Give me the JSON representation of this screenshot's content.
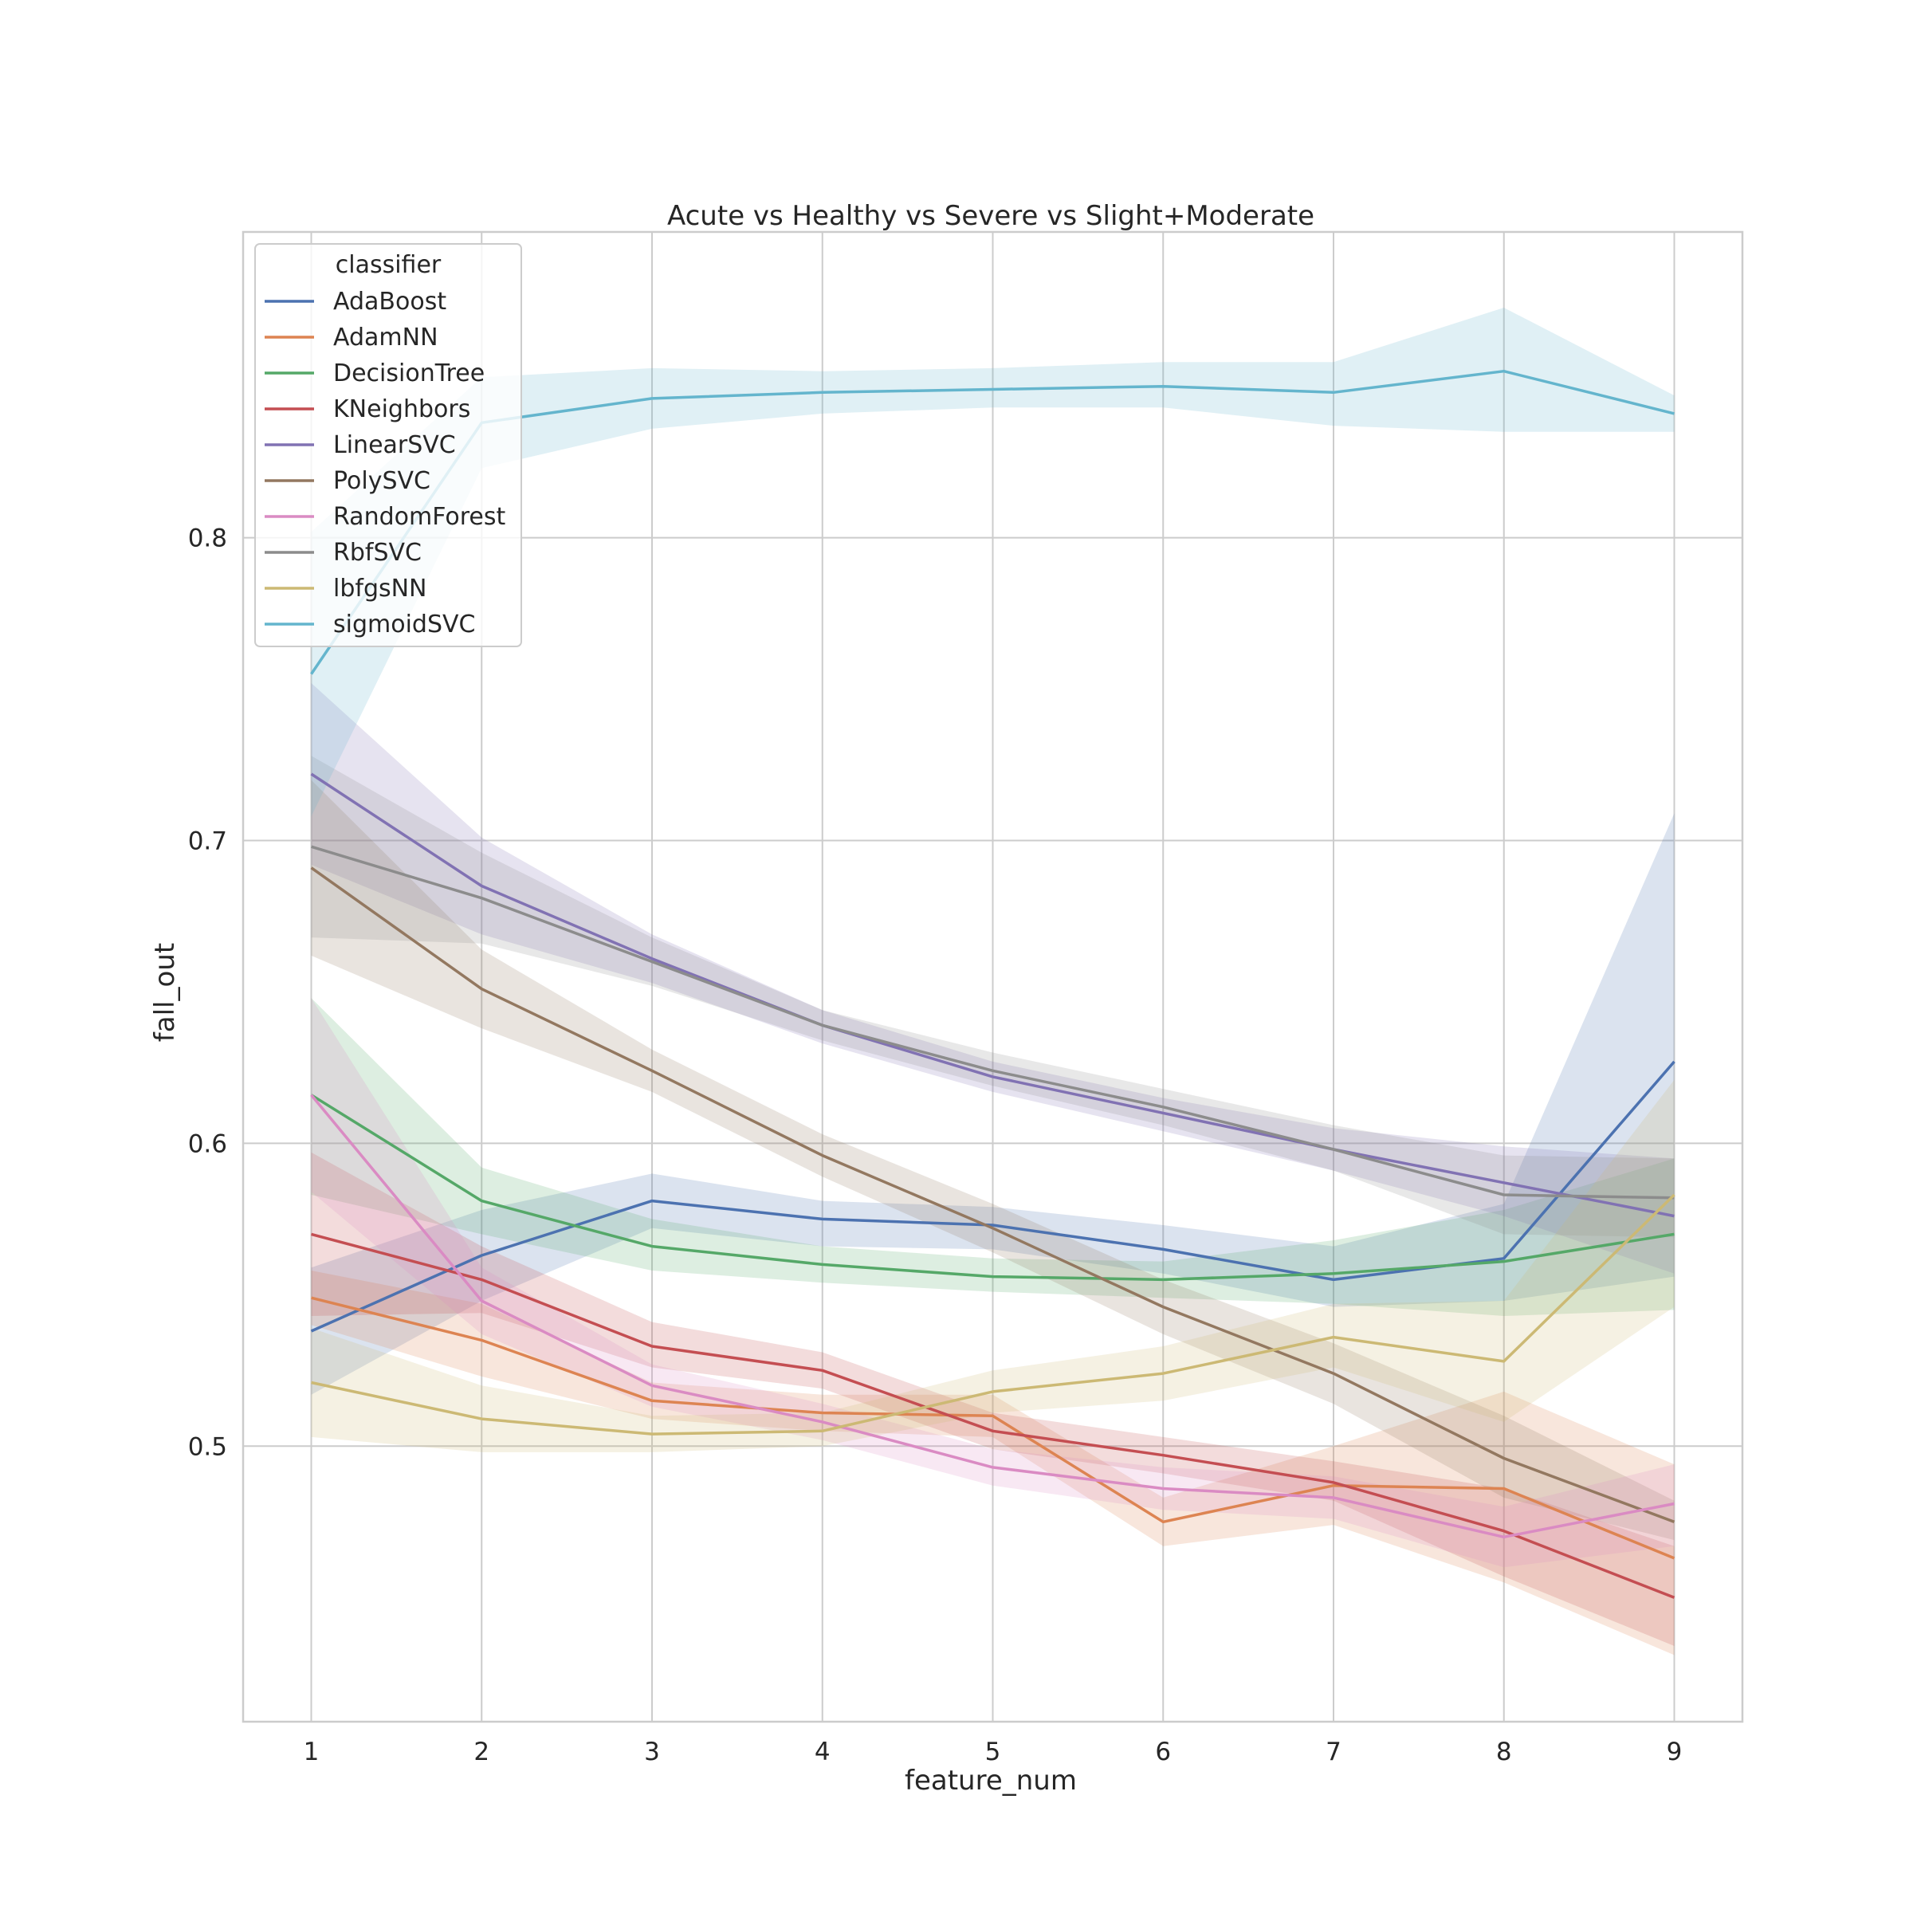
{
  "chart_data": {
    "type": "line",
    "title": "Acute vs Healthy vs Severe vs Slight+Moderate",
    "xlabel": "feature_num",
    "ylabel": "fall_out",
    "x": [
      1,
      2,
      3,
      4,
      5,
      6,
      7,
      8,
      9
    ],
    "xlim": [
      0.6,
      9.4
    ],
    "ylim": [
      0.409,
      0.901
    ],
    "xticks": [
      "1",
      "2",
      "3",
      "4",
      "5",
      "6",
      "7",
      "8",
      "9"
    ],
    "yticks": [
      0.5,
      0.6,
      0.7,
      0.8
    ],
    "ytick_labels": [
      "0.5",
      "0.6",
      "0.7",
      "0.8"
    ],
    "grid": true,
    "legend": {
      "title": "classifier",
      "placement": "top-left"
    },
    "series": [
      {
        "name": "AdaBoost",
        "color": "#4c72b0",
        "values": [
          0.538,
          0.563,
          0.581,
          0.575,
          0.573,
          0.565,
          0.555,
          0.562,
          0.627
        ],
        "lower": [
          0.517,
          0.548,
          0.572,
          0.566,
          0.565,
          0.557,
          0.546,
          0.548,
          0.556
        ],
        "upper": [
          0.559,
          0.578,
          0.59,
          0.581,
          0.579,
          0.573,
          0.566,
          0.58,
          0.709
        ]
      },
      {
        "name": "AdamNN",
        "color": "#dd8452",
        "values": [
          0.549,
          0.535,
          0.515,
          0.511,
          0.51,
          0.475,
          0.487,
          0.486,
          0.463
        ],
        "lower": [
          0.54,
          0.523,
          0.509,
          0.505,
          0.503,
          0.467,
          0.474,
          0.455,
          0.431
        ],
        "upper": [
          0.558,
          0.547,
          0.521,
          0.517,
          0.517,
          0.483,
          0.5,
          0.518,
          0.494
        ]
      },
      {
        "name": "DecisionTree",
        "color": "#55a868",
        "values": [
          0.616,
          0.581,
          0.566,
          0.56,
          0.556,
          0.555,
          0.557,
          0.561,
          0.57
        ],
        "lower": [
          0.583,
          0.57,
          0.558,
          0.554,
          0.551,
          0.549,
          0.547,
          0.543,
          0.545
        ],
        "upper": [
          0.648,
          0.592,
          0.575,
          0.566,
          0.562,
          0.561,
          0.568,
          0.578,
          0.595
        ]
      },
      {
        "name": "KNeighbors",
        "color": "#c44e52",
        "values": [
          0.57,
          0.555,
          0.533,
          0.525,
          0.505,
          0.497,
          0.488,
          0.472,
          0.45
        ],
        "lower": [
          0.543,
          0.544,
          0.526,
          0.519,
          0.499,
          0.491,
          0.482,
          0.457,
          0.434
        ],
        "upper": [
          0.597,
          0.566,
          0.541,
          0.531,
          0.511,
          0.503,
          0.495,
          0.486,
          0.467
        ]
      },
      {
        "name": "LinearSVC",
        "color": "#8172b3",
        "values": [
          0.722,
          0.685,
          0.661,
          0.639,
          0.622,
          0.61,
          0.598,
          0.587,
          0.576
        ],
        "lower": [
          0.692,
          0.669,
          0.653,
          0.633,
          0.617,
          0.604,
          0.591,
          0.576,
          0.557
        ],
        "upper": [
          0.752,
          0.701,
          0.669,
          0.644,
          0.627,
          0.615,
          0.605,
          0.599,
          0.595
        ]
      },
      {
        "name": "PolySVC",
        "color": "#937860",
        "values": [
          0.691,
          0.651,
          0.624,
          0.596,
          0.572,
          0.546,
          0.524,
          0.496,
          0.475
        ],
        "lower": [
          0.662,
          0.638,
          0.617,
          0.589,
          0.564,
          0.537,
          0.514,
          0.483,
          0.469
        ],
        "upper": [
          0.72,
          0.664,
          0.631,
          0.603,
          0.58,
          0.555,
          0.534,
          0.51,
          0.482
        ]
      },
      {
        "name": "RandomForest",
        "color": "#da8bc3",
        "values": [
          0.616,
          0.548,
          0.52,
          0.508,
          0.493,
          0.486,
          0.483,
          0.47,
          0.481
        ],
        "lower": [
          0.584,
          0.537,
          0.513,
          0.502,
          0.487,
          0.479,
          0.476,
          0.46,
          0.467
        ],
        "upper": [
          0.648,
          0.559,
          0.527,
          0.514,
          0.499,
          0.493,
          0.49,
          0.48,
          0.494
        ]
      },
      {
        "name": "RbfSVC",
        "color": "#8c8c8c",
        "values": [
          0.698,
          0.681,
          0.66,
          0.639,
          0.624,
          0.612,
          0.598,
          0.583,
          0.582
        ],
        "lower": [
          0.668,
          0.666,
          0.652,
          0.634,
          0.619,
          0.606,
          0.591,
          0.57,
          0.569
        ],
        "upper": [
          0.728,
          0.696,
          0.668,
          0.644,
          0.63,
          0.618,
          0.606,
          0.596,
          0.595
        ]
      },
      {
        "name": "lbfgsNN",
        "color": "#ccb974",
        "values": [
          0.521,
          0.509,
          0.504,
          0.505,
          0.518,
          0.524,
          0.536,
          0.528,
          0.583
        ],
        "lower": [
          0.503,
          0.498,
          0.498,
          0.5,
          0.511,
          0.515,
          0.526,
          0.508,
          0.546
        ],
        "upper": [
          0.539,
          0.52,
          0.51,
          0.511,
          0.525,
          0.533,
          0.547,
          0.548,
          0.621
        ]
      },
      {
        "name": "sigmoidSVC",
        "color": "#64b5cd",
        "values": [
          0.755,
          0.838,
          0.846,
          0.848,
          0.849,
          0.85,
          0.848,
          0.855,
          0.841
        ],
        "lower": [
          0.708,
          0.823,
          0.836,
          0.841,
          0.843,
          0.843,
          0.837,
          0.835,
          0.835
        ],
        "upper": [
          0.802,
          0.853,
          0.856,
          0.855,
          0.856,
          0.858,
          0.858,
          0.876,
          0.847
        ]
      }
    ]
  }
}
